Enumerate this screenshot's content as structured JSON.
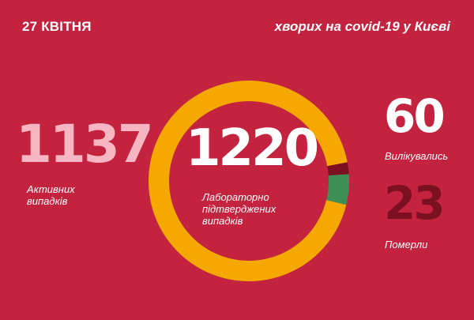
{
  "header": {
    "date": "27 КВІТНЯ",
    "headline": "хворих на covid-19 у Києві"
  },
  "stats": {
    "active": {
      "value": "1137",
      "label": "Активних випадків"
    },
    "total": {
      "value": "1220",
      "label": "Лабораторно підтверджених випадків"
    },
    "recovered": {
      "value": "60",
      "label": "Вилікувались"
    },
    "deaths": {
      "value": "23",
      "label": "Померли"
    }
  },
  "chart_data": {
    "type": "pie",
    "donut": true,
    "title": "",
    "total": 1220,
    "categories": [
      "Активних випадків",
      "Вилікувались",
      "Померли"
    ],
    "values": [
      1137,
      60,
      23
    ],
    "colors": [
      "#f4a800",
      "#3e8f56",
      "#7a1020"
    ]
  }
}
